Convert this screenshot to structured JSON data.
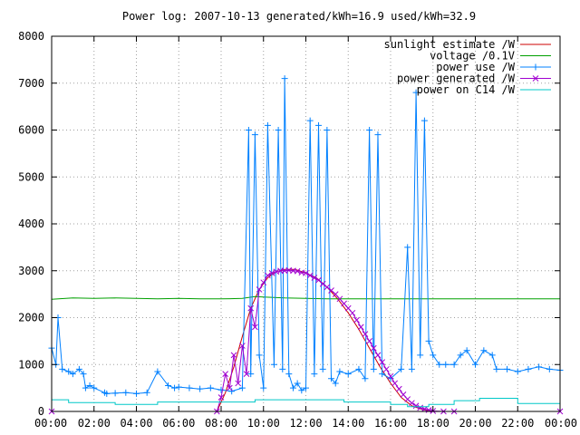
{
  "chart_data": {
    "type": "line",
    "title": "Power log: 2007-10-13 generated/kWh=16.9 used/kWh=32.9",
    "xlabel": "",
    "ylabel": "",
    "xlim": [
      0,
      24
    ],
    "ylim": [
      0,
      8000
    ],
    "grid": true,
    "legend_position": "top-right",
    "x_ticks": [
      {
        "value": 0,
        "label": "00:00"
      },
      {
        "value": 2,
        "label": "02:00"
      },
      {
        "value": 4,
        "label": "04:00"
      },
      {
        "value": 6,
        "label": "06:00"
      },
      {
        "value": 8,
        "label": "08:00"
      },
      {
        "value": 10,
        "label": "10:00"
      },
      {
        "value": 12,
        "label": "12:00"
      },
      {
        "value": 14,
        "label": "14:00"
      },
      {
        "value": 16,
        "label": "16:00"
      },
      {
        "value": 18,
        "label": "18:00"
      },
      {
        "value": 20,
        "label": "20:00"
      },
      {
        "value": 22,
        "label": "22:00"
      },
      {
        "value": 24,
        "label": "00:00"
      }
    ],
    "y_ticks": [
      {
        "value": 0,
        "label": "0"
      },
      {
        "value": 1000,
        "label": "1000"
      },
      {
        "value": 2000,
        "label": "2000"
      },
      {
        "value": 3000,
        "label": "3000"
      },
      {
        "value": 4000,
        "label": "4000"
      },
      {
        "value": 5000,
        "label": "5000"
      },
      {
        "value": 6000,
        "label": "6000"
      },
      {
        "value": 7000,
        "label": "7000"
      },
      {
        "value": 8000,
        "label": "8000"
      }
    ],
    "series": [
      {
        "name": "sunlight estimate /W",
        "color": "#cc0000",
        "marker": "none",
        "x": [
          0,
          7.8,
          8.2,
          8.6,
          9.0,
          9.4,
          9.8,
          10.2,
          10.6,
          11.0,
          11.5,
          12.0,
          12.5,
          13.0,
          13.5,
          14.0,
          14.5,
          15.0,
          15.5,
          16.0,
          16.5,
          17.0,
          17.5,
          18.0,
          18.5,
          24
        ],
        "y": [
          0,
          0,
          400,
          950,
          1600,
          2200,
          2600,
          2850,
          2980,
          3030,
          3030,
          2950,
          2850,
          2650,
          2400,
          2100,
          1750,
          1350,
          950,
          600,
          300,
          120,
          40,
          0,
          0,
          0
        ]
      },
      {
        "name": "voltage /0.1V",
        "color": "#00a000",
        "marker": "none",
        "x": [
          0,
          1,
          2,
          3,
          4,
          5,
          6,
          7,
          8,
          9,
          9.6,
          10,
          11,
          12,
          13,
          14,
          15,
          16,
          17,
          18,
          19,
          20,
          21,
          22,
          23,
          24
        ],
        "y": [
          2390,
          2420,
          2410,
          2420,
          2410,
          2400,
          2410,
          2400,
          2400,
          2410,
          2450,
          2440,
          2420,
          2410,
          2400,
          2400,
          2400,
          2400,
          2400,
          2400,
          2400,
          2400,
          2400,
          2400,
          2400,
          2400
        ]
      },
      {
        "name": "power use /W",
        "color": "#0080ff",
        "marker": "plus",
        "x": [
          0,
          0.2,
          0.3,
          0.5,
          0.8,
          1.0,
          1.3,
          1.5,
          1.6,
          1.8,
          2.0,
          2.5,
          2.6,
          3.0,
          3.5,
          4.0,
          4.5,
          5.0,
          5.5,
          5.8,
          6.0,
          6.5,
          7.0,
          7.5,
          8.0,
          8.5,
          9.0,
          9.3,
          9.4,
          9.6,
          9.8,
          10.0,
          10.2,
          10.5,
          10.7,
          10.9,
          11.0,
          11.2,
          11.4,
          11.6,
          11.8,
          12.0,
          12.2,
          12.4,
          12.6,
          12.8,
          13.0,
          13.2,
          13.4,
          13.6,
          14.0,
          14.5,
          14.8,
          15.0,
          15.2,
          15.4,
          15.6,
          16.0,
          16.5,
          16.8,
          17.0,
          17.2,
          17.4,
          17.6,
          17.8,
          18.0,
          18.3,
          18.6,
          19.0,
          19.3,
          19.6,
          20.0,
          20.4,
          20.8,
          21.0,
          21.5,
          22.0,
          22.5,
          23.0,
          23.5,
          24
        ],
        "y": [
          1350,
          1000,
          2000,
          900,
          850,
          800,
          900,
          800,
          500,
          550,
          500,
          400,
          380,
          390,
          400,
          380,
          400,
          850,
          550,
          500,
          520,
          500,
          480,
          500,
          460,
          430,
          500,
          6000,
          800,
          5900,
          1200,
          500,
          6100,
          1000,
          6000,
          900,
          7100,
          800,
          500,
          600,
          450,
          500,
          6200,
          800,
          6100,
          900,
          6000,
          700,
          600,
          850,
          800,
          900,
          700,
          6000,
          900,
          5900,
          800,
          700,
          900,
          3500,
          900,
          6800,
          1200,
          6200,
          1500,
          1200,
          1000,
          1000,
          1000,
          1200,
          1300,
          1000,
          1300,
          1200,
          900,
          900,
          850,
          900,
          950,
          900,
          880
        ]
      },
      {
        "name": "power generated /W",
        "color": "#a000d0",
        "marker": "cross",
        "x": [
          0,
          7.8,
          8.0,
          8.2,
          8.4,
          8.6,
          8.8,
          9.0,
          9.2,
          9.4,
          9.6,
          9.8,
          10.0,
          10.2,
          10.4,
          10.6,
          10.8,
          11.0,
          11.2,
          11.4,
          11.6,
          11.8,
          12.0,
          12.2,
          12.4,
          12.6,
          12.8,
          13.0,
          13.2,
          13.4,
          13.6,
          13.8,
          14.0,
          14.2,
          14.4,
          14.6,
          14.8,
          15.0,
          15.2,
          15.4,
          15.6,
          15.8,
          16.0,
          16.2,
          16.4,
          16.6,
          16.8,
          17.0,
          17.2,
          17.4,
          17.6,
          17.8,
          18.0,
          18.5,
          19.0,
          24
        ],
        "y": [
          0,
          0,
          300,
          800,
          500,
          1200,
          600,
          1400,
          800,
          2200,
          1800,
          2600,
          2750,
          2900,
          2950,
          2980,
          3000,
          3000,
          3010,
          3000,
          2990,
          2960,
          2950,
          2900,
          2850,
          2800,
          2720,
          2650,
          2580,
          2500,
          2400,
          2300,
          2200,
          2100,
          1950,
          1800,
          1650,
          1500,
          1350,
          1200,
          1050,
          900,
          750,
          600,
          480,
          360,
          260,
          180,
          120,
          80,
          50,
          30,
          10,
          0,
          0,
          0
        ]
      },
      {
        "name": "power on C14 /W",
        "color": "#00c8c8",
        "marker": "none",
        "x": [
          0,
          0.8,
          0.8,
          3.0,
          3.0,
          5.0,
          5.0,
          9.6,
          9.6,
          13.8,
          13.8,
          16.0,
          16.0,
          16.8,
          16.8,
          17.8,
          17.8,
          19.0,
          19.0,
          20.2,
          20.2,
          22.0,
          22.0,
          24
        ],
        "y": [
          250,
          250,
          190,
          190,
          150,
          150,
          200,
          200,
          250,
          250,
          200,
          200,
          150,
          150,
          100,
          100,
          150,
          150,
          230,
          230,
          280,
          280,
          170,
          170
        ]
      }
    ]
  }
}
